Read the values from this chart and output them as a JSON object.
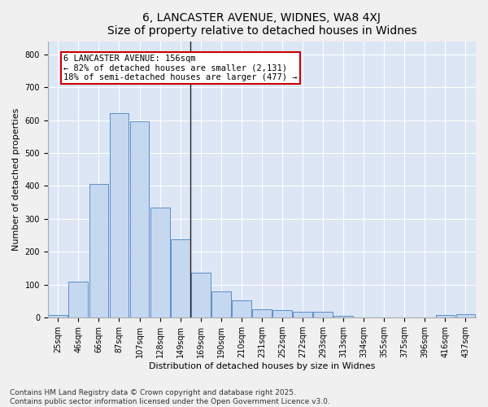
{
  "title": "6, LANCASTER AVENUE, WIDNES, WA8 4XJ",
  "subtitle": "Size of property relative to detached houses in Widnes",
  "xlabel": "Distribution of detached houses by size in Widnes",
  "ylabel": "Number of detached properties",
  "categories": [
    "25sqm",
    "46sqm",
    "66sqm",
    "87sqm",
    "107sqm",
    "128sqm",
    "149sqm",
    "169sqm",
    "190sqm",
    "210sqm",
    "231sqm",
    "252sqm",
    "272sqm",
    "293sqm",
    "313sqm",
    "334sqm",
    "355sqm",
    "375sqm",
    "396sqm",
    "416sqm",
    "437sqm"
  ],
  "values": [
    7,
    110,
    405,
    620,
    597,
    335,
    237,
    137,
    80,
    53,
    25,
    22,
    17,
    18,
    5,
    0,
    0,
    0,
    0,
    8,
    10
  ],
  "bar_color": "#c5d8f0",
  "bar_edge_color": "#5b8dc8",
  "annotation_text_line1": "6 LANCASTER AVENUE: 156sqm",
  "annotation_text_line2": "← 82% of detached houses are smaller (2,131)",
  "annotation_text_line3": "18% of semi-detached houses are larger (477) →",
  "annotation_box_color": "#ffffff",
  "annotation_box_edge": "#cc0000",
  "vline_color": "#222222",
  "vline_x": 6.5,
  "ylim": [
    0,
    840
  ],
  "yticks": [
    0,
    100,
    200,
    300,
    400,
    500,
    600,
    700,
    800
  ],
  "fig_background": "#f0f0f0",
  "plot_background": "#dce6f5",
  "grid_color": "#ffffff",
  "footer_text": "Contains HM Land Registry data © Crown copyright and database right 2025.\nContains public sector information licensed under the Open Government Licence v3.0.",
  "title_fontsize": 10,
  "axis_label_fontsize": 8,
  "tick_fontsize": 7,
  "footer_fontsize": 6.5,
  "annotation_fontsize": 7.5
}
